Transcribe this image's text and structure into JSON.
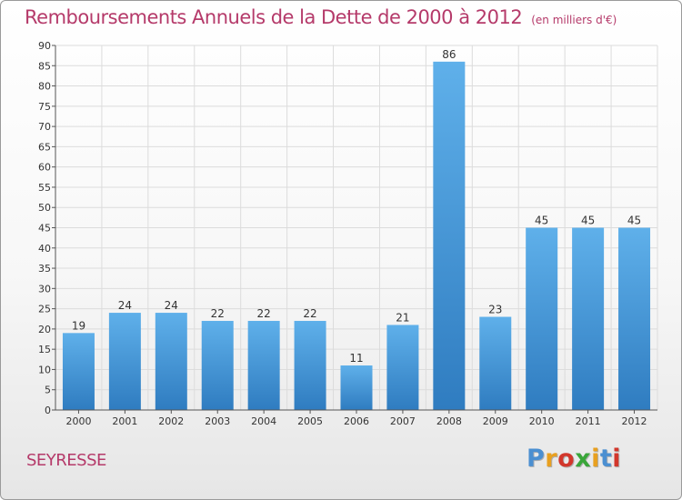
{
  "header": {
    "title": "Remboursements Annuels de la Dette de 2000 à 2012",
    "unit": "(en milliers d'€)"
  },
  "footer": {
    "town": "SEYRESSE",
    "logo_text": "Proxiti",
    "logo_colors": [
      "#4b8fd1",
      "#e8a020",
      "#d2372c",
      "#3aa63a",
      "#e8a020",
      "#4b8fd1",
      "#d2372c"
    ]
  },
  "colors": {
    "title": "#b53a6a",
    "bar_top": "#5fb0ea",
    "bar_bottom": "#2f7cc0",
    "grid": "#dcdcdc",
    "axis": "#555555"
  },
  "chart_data": {
    "type": "bar",
    "title": "Remboursements Annuels de la Dette de 2000 à 2012",
    "xlabel": "",
    "ylabel": "",
    "categories": [
      "2000",
      "2001",
      "2002",
      "2003",
      "2004",
      "2005",
      "2006",
      "2007",
      "2008",
      "2009",
      "2010",
      "2011",
      "2012"
    ],
    "values": [
      19,
      24,
      24,
      22,
      22,
      22,
      11,
      21,
      86,
      23,
      45,
      45,
      45
    ],
    "ylim": [
      0,
      90
    ],
    "yticks": [
      0,
      5,
      10,
      15,
      20,
      25,
      30,
      35,
      40,
      45,
      50,
      55,
      60,
      65,
      70,
      75,
      80,
      85,
      90
    ],
    "grid": true,
    "data_labels": true
  }
}
